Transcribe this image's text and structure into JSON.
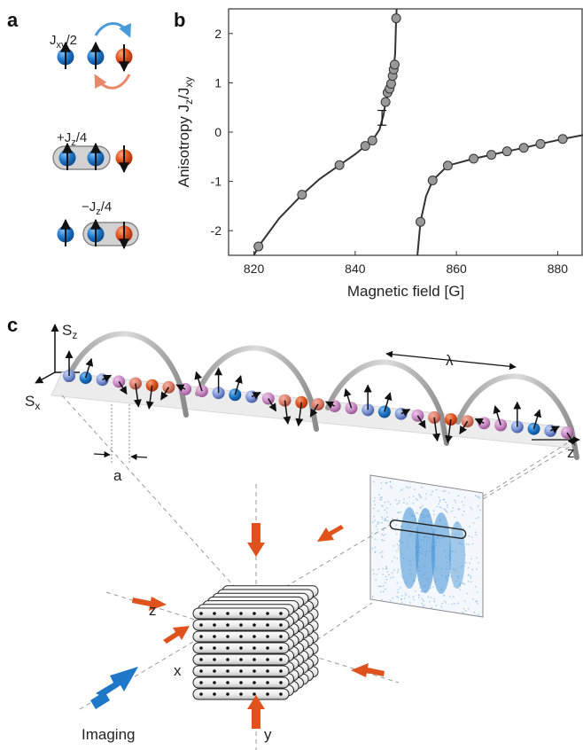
{
  "panels": {
    "a": "a",
    "b": "b",
    "c": "c"
  },
  "panel_a": {
    "term1": {
      "main": "J",
      "sub": "xy",
      "suffix": "/2"
    },
    "term2": {
      "prefix": "+J",
      "sub": "z",
      "suffix": "/4"
    },
    "term3": {
      "prefix": "−J",
      "sub": "z",
      "suffix": "/4"
    }
  },
  "panel_c": {
    "sz_label": {
      "main": "S",
      "sub": "z"
    },
    "sx_label": {
      "main": "S",
      "sub": "x"
    },
    "lambda_label": "λ",
    "a_label": "a",
    "z_label": "z",
    "cube_z_label": "z",
    "cube_x_label": "x",
    "cube_y_label": "y",
    "imaging_label": "Imaging"
  },
  "colors": {
    "blue": "#1f77c8",
    "orange": "#e0521c",
    "pink": "#c98bc4",
    "gray_point": "#999999",
    "light_blue_arrow": "#4a9ad8",
    "light_orange_arrow": "#e8876a"
  },
  "chart_data": {
    "type": "scatter",
    "xlabel": "Magnetic field [G]",
    "ylabel_main": "Anisotropy  J",
    "ylabel_sub1": "z",
    "ylabel_mid": "/J",
    "ylabel_sub2": "xy",
    "xlim": [
      815,
      885
    ],
    "ylim": [
      -2.5,
      2.5
    ],
    "xticks": [
      820,
      840,
      860,
      880
    ],
    "yticks": [
      2,
      1,
      0,
      -1,
      -2
    ],
    "xtick_labels": [
      "820",
      "840",
      "860",
      "880"
    ],
    "ytick_labels": [
      "2",
      "1",
      "0",
      "-1",
      "-2"
    ],
    "grid": false,
    "points": [
      {
        "x": 820.9,
        "y": -2.32
      },
      {
        "x": 829.5,
        "y": -1.27
      },
      {
        "x": 836.9,
        "y": -0.67
      },
      {
        "x": 842.0,
        "y": -0.28
      },
      {
        "x": 843.4,
        "y": -0.17
      },
      {
        "x": 846.0,
        "y": 0.61
      },
      {
        "x": 846.4,
        "y": 0.8
      },
      {
        "x": 846.8,
        "y": 0.88
      },
      {
        "x": 847.1,
        "y": 0.98
      },
      {
        "x": 847.4,
        "y": 1.14
      },
      {
        "x": 847.6,
        "y": 1.27
      },
      {
        "x": 847.8,
        "y": 1.37
      },
      {
        "x": 848.1,
        "y": 2.31
      },
      {
        "x": 852.9,
        "y": -1.82
      },
      {
        "x": 855.3,
        "y": -0.98
      },
      {
        "x": 858.3,
        "y": -0.68
      },
      {
        "x": 863.4,
        "y": -0.54
      },
      {
        "x": 866.9,
        "y": -0.46
      },
      {
        "x": 870.0,
        "y": -0.39
      },
      {
        "x": 873.3,
        "y": -0.32
      },
      {
        "x": 876.6,
        "y": -0.24
      },
      {
        "x": 881.0,
        "y": -0.14
      }
    ],
    "error_bar": {
      "x": 845.3,
      "y": 0.29,
      "low": 0.14,
      "high": 0.44
    },
    "curve_left": {
      "resonance": 849.5,
      "width": 11.0,
      "offset": 0.15
    },
    "curve_right": {
      "resonance": 851.5,
      "width": 8.0,
      "offset": 0.35
    }
  }
}
